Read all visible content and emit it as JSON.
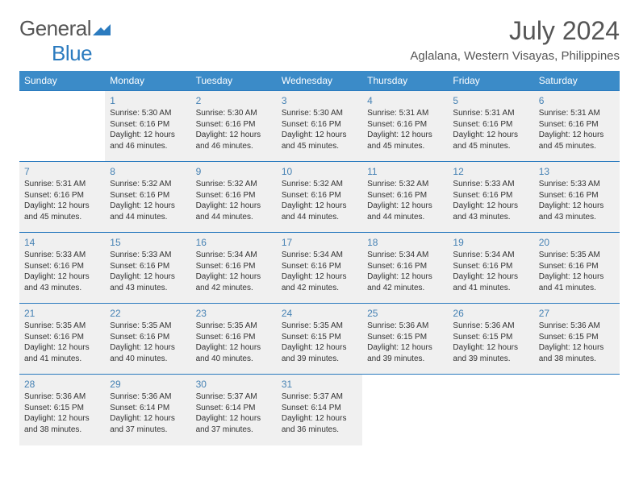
{
  "logo": {
    "text1": "General",
    "text2": "Blue"
  },
  "header": {
    "month": "July 2024",
    "location": "Aglalana, Western Visayas, Philippines"
  },
  "columns": [
    "Sunday",
    "Monday",
    "Tuesday",
    "Wednesday",
    "Thursday",
    "Friday",
    "Saturday"
  ],
  "style": {
    "header_bg": "#3b8bc8",
    "header_fg": "#ffffff",
    "cell_bg": "#f0f0f0",
    "border_color": "#2b7bbf",
    "daynum_color": "#4682b4",
    "page_bg": "#ffffff",
    "text_color": "#333333",
    "month_fontsize": 32,
    "location_fontsize": 15,
    "th_fontsize": 12,
    "cell_fontsize": 10,
    "daynum_fontsize": 12
  },
  "weeks": [
    [
      null,
      {
        "n": "1",
        "sr": "Sunrise: 5:30 AM",
        "ss": "Sunset: 6:16 PM",
        "d1": "Daylight: 12 hours",
        "d2": "and 46 minutes."
      },
      {
        "n": "2",
        "sr": "Sunrise: 5:30 AM",
        "ss": "Sunset: 6:16 PM",
        "d1": "Daylight: 12 hours",
        "d2": "and 46 minutes."
      },
      {
        "n": "3",
        "sr": "Sunrise: 5:30 AM",
        "ss": "Sunset: 6:16 PM",
        "d1": "Daylight: 12 hours",
        "d2": "and 45 minutes."
      },
      {
        "n": "4",
        "sr": "Sunrise: 5:31 AM",
        "ss": "Sunset: 6:16 PM",
        "d1": "Daylight: 12 hours",
        "d2": "and 45 minutes."
      },
      {
        "n": "5",
        "sr": "Sunrise: 5:31 AM",
        "ss": "Sunset: 6:16 PM",
        "d1": "Daylight: 12 hours",
        "d2": "and 45 minutes."
      },
      {
        "n": "6",
        "sr": "Sunrise: 5:31 AM",
        "ss": "Sunset: 6:16 PM",
        "d1": "Daylight: 12 hours",
        "d2": "and 45 minutes."
      }
    ],
    [
      {
        "n": "7",
        "sr": "Sunrise: 5:31 AM",
        "ss": "Sunset: 6:16 PM",
        "d1": "Daylight: 12 hours",
        "d2": "and 45 minutes."
      },
      {
        "n": "8",
        "sr": "Sunrise: 5:32 AM",
        "ss": "Sunset: 6:16 PM",
        "d1": "Daylight: 12 hours",
        "d2": "and 44 minutes."
      },
      {
        "n": "9",
        "sr": "Sunrise: 5:32 AM",
        "ss": "Sunset: 6:16 PM",
        "d1": "Daylight: 12 hours",
        "d2": "and 44 minutes."
      },
      {
        "n": "10",
        "sr": "Sunrise: 5:32 AM",
        "ss": "Sunset: 6:16 PM",
        "d1": "Daylight: 12 hours",
        "d2": "and 44 minutes."
      },
      {
        "n": "11",
        "sr": "Sunrise: 5:32 AM",
        "ss": "Sunset: 6:16 PM",
        "d1": "Daylight: 12 hours",
        "d2": "and 44 minutes."
      },
      {
        "n": "12",
        "sr": "Sunrise: 5:33 AM",
        "ss": "Sunset: 6:16 PM",
        "d1": "Daylight: 12 hours",
        "d2": "and 43 minutes."
      },
      {
        "n": "13",
        "sr": "Sunrise: 5:33 AM",
        "ss": "Sunset: 6:16 PM",
        "d1": "Daylight: 12 hours",
        "d2": "and 43 minutes."
      }
    ],
    [
      {
        "n": "14",
        "sr": "Sunrise: 5:33 AM",
        "ss": "Sunset: 6:16 PM",
        "d1": "Daylight: 12 hours",
        "d2": "and 43 minutes."
      },
      {
        "n": "15",
        "sr": "Sunrise: 5:33 AM",
        "ss": "Sunset: 6:16 PM",
        "d1": "Daylight: 12 hours",
        "d2": "and 43 minutes."
      },
      {
        "n": "16",
        "sr": "Sunrise: 5:34 AM",
        "ss": "Sunset: 6:16 PM",
        "d1": "Daylight: 12 hours",
        "d2": "and 42 minutes."
      },
      {
        "n": "17",
        "sr": "Sunrise: 5:34 AM",
        "ss": "Sunset: 6:16 PM",
        "d1": "Daylight: 12 hours",
        "d2": "and 42 minutes."
      },
      {
        "n": "18",
        "sr": "Sunrise: 5:34 AM",
        "ss": "Sunset: 6:16 PM",
        "d1": "Daylight: 12 hours",
        "d2": "and 42 minutes."
      },
      {
        "n": "19",
        "sr": "Sunrise: 5:34 AM",
        "ss": "Sunset: 6:16 PM",
        "d1": "Daylight: 12 hours",
        "d2": "and 41 minutes."
      },
      {
        "n": "20",
        "sr": "Sunrise: 5:35 AM",
        "ss": "Sunset: 6:16 PM",
        "d1": "Daylight: 12 hours",
        "d2": "and 41 minutes."
      }
    ],
    [
      {
        "n": "21",
        "sr": "Sunrise: 5:35 AM",
        "ss": "Sunset: 6:16 PM",
        "d1": "Daylight: 12 hours",
        "d2": "and 41 minutes."
      },
      {
        "n": "22",
        "sr": "Sunrise: 5:35 AM",
        "ss": "Sunset: 6:16 PM",
        "d1": "Daylight: 12 hours",
        "d2": "and 40 minutes."
      },
      {
        "n": "23",
        "sr": "Sunrise: 5:35 AM",
        "ss": "Sunset: 6:16 PM",
        "d1": "Daylight: 12 hours",
        "d2": "and 40 minutes."
      },
      {
        "n": "24",
        "sr": "Sunrise: 5:35 AM",
        "ss": "Sunset: 6:15 PM",
        "d1": "Daylight: 12 hours",
        "d2": "and 39 minutes."
      },
      {
        "n": "25",
        "sr": "Sunrise: 5:36 AM",
        "ss": "Sunset: 6:15 PM",
        "d1": "Daylight: 12 hours",
        "d2": "and 39 minutes."
      },
      {
        "n": "26",
        "sr": "Sunrise: 5:36 AM",
        "ss": "Sunset: 6:15 PM",
        "d1": "Daylight: 12 hours",
        "d2": "and 39 minutes."
      },
      {
        "n": "27",
        "sr": "Sunrise: 5:36 AM",
        "ss": "Sunset: 6:15 PM",
        "d1": "Daylight: 12 hours",
        "d2": "and 38 minutes."
      }
    ],
    [
      {
        "n": "28",
        "sr": "Sunrise: 5:36 AM",
        "ss": "Sunset: 6:15 PM",
        "d1": "Daylight: 12 hours",
        "d2": "and 38 minutes."
      },
      {
        "n": "29",
        "sr": "Sunrise: 5:36 AM",
        "ss": "Sunset: 6:14 PM",
        "d1": "Daylight: 12 hours",
        "d2": "and 37 minutes."
      },
      {
        "n": "30",
        "sr": "Sunrise: 5:37 AM",
        "ss": "Sunset: 6:14 PM",
        "d1": "Daylight: 12 hours",
        "d2": "and 37 minutes."
      },
      {
        "n": "31",
        "sr": "Sunrise: 5:37 AM",
        "ss": "Sunset: 6:14 PM",
        "d1": "Daylight: 12 hours",
        "d2": "and 36 minutes."
      },
      null,
      null,
      null
    ]
  ]
}
